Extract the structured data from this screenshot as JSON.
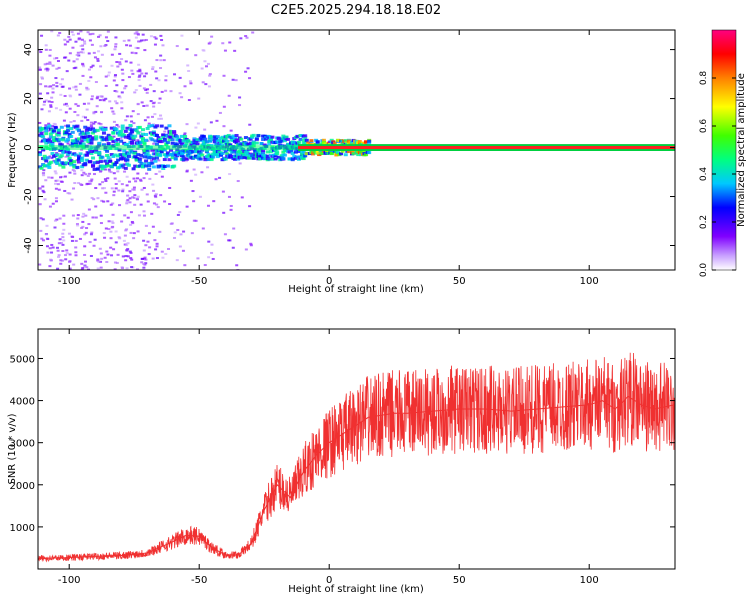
{
  "title": "C2E5.2025.294.18.18.E02",
  "chart_data": [
    {
      "type": "heatmap",
      "xlabel": "Height of straight line (km)",
      "ylabel": "Frequency (Hz)",
      "xlim": [
        -112,
        133
      ],
      "ylim": [
        -50,
        48
      ],
      "x_ticks": [
        -100,
        -50,
        0,
        50,
        100
      ],
      "y_ticks": [
        -40,
        -20,
        0,
        20,
        40
      ],
      "colorbar": {
        "label": "Normalized spectral amplitude",
        "range": [
          0,
          1
        ],
        "ticks": [
          0.0,
          0.2,
          0.4,
          0.6,
          0.8
        ]
      },
      "frequency_band_hz": [
        -1,
        1
      ],
      "band_center_hz": 0
    },
    {
      "type": "line",
      "xlabel": "Height of straight line (km)",
      "ylabel": "SNR (10 * v/v)",
      "xlim": [
        -112,
        133
      ],
      "ylim": [
        0,
        5700
      ],
      "x_ticks": [
        -100,
        -50,
        0,
        50,
        100
      ],
      "y_ticks": [
        1000,
        2000,
        3000,
        4000,
        5000
      ],
      "color": "#f03030",
      "x": [
        -112,
        -100,
        -90,
        -80,
        -70,
        -60,
        -55,
        -50,
        -45,
        -40,
        -35,
        -30,
        -25,
        -20,
        -15,
        -10,
        -5,
        0,
        5,
        10,
        15,
        20,
        25,
        30,
        40,
        50,
        60,
        70,
        80,
        90,
        100,
        105,
        110,
        115,
        120,
        125,
        133
      ],
      "values": [
        250,
        270,
        300,
        320,
        380,
        650,
        800,
        780,
        500,
        340,
        330,
        600,
        1400,
        2000,
        1700,
        2300,
        2700,
        3000,
        3200,
        3400,
        3600,
        3650,
        3700,
        3700,
        3750,
        3800,
        3800,
        3750,
        3800,
        3850,
        3900,
        4000,
        3800,
        4100,
        3900,
        3800,
        3900
      ]
    }
  ]
}
